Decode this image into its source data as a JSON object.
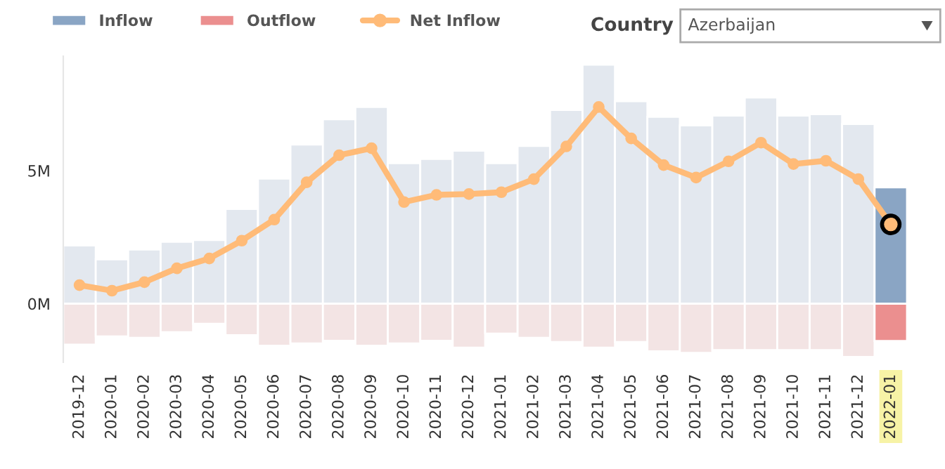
{
  "chart_data": {
    "type": "bar",
    "stacked": true,
    "legend": "top",
    "marker": "circle",
    "categories": [
      "2019-12",
      "2020-01",
      "2020-02",
      "2020-03",
      "2020-04",
      "2020-05",
      "2020-06",
      "2020-07",
      "2020-08",
      "2020-09",
      "2020-10",
      "2020-11",
      "2020-12",
      "2021-01",
      "2021-02",
      "2021-03",
      "2021-04",
      "2021-05",
      "2021-06",
      "2021-07",
      "2021-08",
      "2021-09",
      "2021-10",
      "2021-11",
      "2021-12",
      "2022-01"
    ],
    "series": [
      {
        "name": "Inflow",
        "color": "#8aa5c4",
        "colors": [
          "#e3e8ef",
          "#e3e8ef",
          "#e3e8ef",
          "#e3e8ef",
          "#e3e8ef",
          "#e3e8ef",
          "#e3e8ef",
          "#e3e8ef",
          "#e3e8ef",
          "#e3e8ef",
          "#e3e8ef",
          "#e3e8ef",
          "#e3e8ef",
          "#e3e8ef",
          "#e3e8ef",
          "#e3e8ef",
          "#e3e8ef",
          "#e3e8ef",
          "#e3e8ef",
          "#e3e8ef",
          "#e3e8ef",
          "#e3e8ef",
          "#e3e8ef",
          "#e3e8ef",
          "#e3e8ef",
          "#8aa5c4"
        ],
        "values": [
          2.19,
          1.67,
          2.04,
          2.33,
          2.39,
          3.56,
          4.7,
          5.98,
          6.93,
          7.39,
          5.28,
          5.44,
          5.75,
          5.28,
          5.93,
          7.28,
          8.98,
          7.61,
          7.02,
          6.7,
          7.07,
          7.75,
          7.07,
          7.12,
          6.75,
          4.37
        ]
      },
      {
        "name": "Outflow",
        "color": "#eb8f8f",
        "colors": [
          "#f3e4e4",
          "#f3e4e4",
          "#f3e4e4",
          "#f3e4e4",
          "#f3e4e4",
          "#f3e4e4",
          "#f3e4e4",
          "#f3e4e4",
          "#f3e4e4",
          "#f3e4e4",
          "#f3e4e4",
          "#f3e4e4",
          "#f3e4e4",
          "#f3e4e4",
          "#f3e4e4",
          "#f3e4e4",
          "#f3e4e4",
          "#f3e4e4",
          "#f3e4e4",
          "#f3e4e4",
          "#f3e4e4",
          "#f3e4e4",
          "#f3e4e4",
          "#f3e4e4",
          "#f3e4e4",
          "#eb8f8f"
        ],
        "values": [
          -1.54,
          -1.23,
          -1.28,
          -1.07,
          -0.75,
          -1.18,
          -1.58,
          -1.49,
          -1.39,
          -1.58,
          -1.49,
          -1.39,
          -1.65,
          -1.12,
          -1.28,
          -1.44,
          -1.65,
          -1.44,
          -1.79,
          -1.85,
          -1.74,
          -1.74,
          -1.74,
          -1.74,
          -2.0,
          -1.4
        ]
      },
      {
        "name": "Net Inflow",
        "type": "line",
        "color": "#ffbb78",
        "values": [
          0.7,
          0.49,
          0.81,
          1.33,
          1.7,
          2.37,
          3.16,
          4.56,
          5.58,
          5.84,
          3.82,
          4.09,
          4.12,
          4.19,
          4.68,
          5.91,
          7.39,
          6.21,
          5.21,
          4.74,
          5.35,
          6.05,
          5.25,
          5.37,
          4.68,
          2.98
        ]
      }
    ],
    "ylim": [
      -2.2,
      9.3
    ],
    "yticks": [
      {
        "value": 0,
        "label": "0M"
      },
      {
        "value": 5,
        "label": "5M"
      }
    ],
    "annotations": [
      "Country",
      "Azerbaijan"
    ]
  }
}
